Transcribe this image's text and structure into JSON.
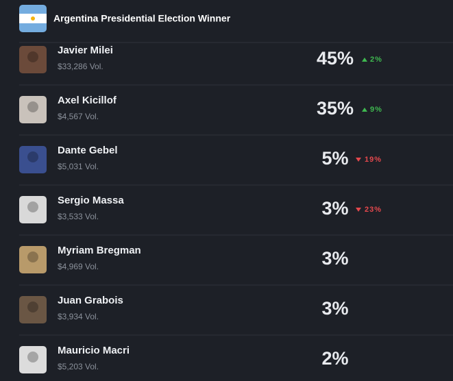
{
  "header": {
    "title": "Argentina Presidential Election Winner"
  },
  "rows": [
    {
      "name": "Javier Milei",
      "volume": "$33,286 Vol.",
      "percent": "45%",
      "change": "2%",
      "direction": "up"
    },
    {
      "name": "Axel Kicillof",
      "volume": "$4,567 Vol.",
      "percent": "35%",
      "change": "9%",
      "direction": "up"
    },
    {
      "name": "Dante Gebel",
      "volume": "$5,031 Vol.",
      "percent": "5%",
      "change": "19%",
      "direction": "down"
    },
    {
      "name": "Sergio Massa",
      "volume": "$3,533 Vol.",
      "percent": "3%",
      "change": "23%",
      "direction": "down"
    },
    {
      "name": "Myriam Bregman",
      "volume": "$4,969 Vol.",
      "percent": "3%"
    },
    {
      "name": "Juan Grabois",
      "volume": "$3,934 Vol.",
      "percent": "3%"
    },
    {
      "name": "Mauricio Macri",
      "volume": "$5,203 Vol.",
      "percent": "2%"
    }
  ]
}
